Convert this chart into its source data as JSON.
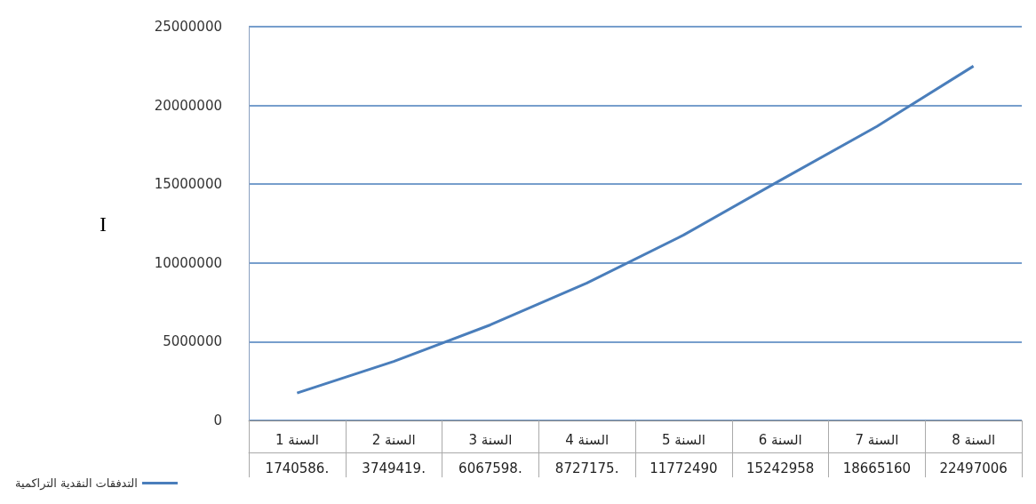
{
  "chart_data": {
    "type": "line",
    "ylabel": "I",
    "categories": [
      "السنة 1",
      "السنة 2",
      "السنة 3",
      "السنة 4",
      "السنة 5",
      "السنة 6",
      "السنة 7",
      "السنة 8"
    ],
    "series": [
      {
        "name": "التدفقات النقدية التراكمية",
        "color": "#4a7ebb",
        "values": [
          1740586,
          3749419,
          6067598,
          8727175,
          11772490,
          15242958,
          18665160,
          22497006
        ],
        "value_labels": [
          "1740586.",
          "3749419.",
          "6067598.",
          "8727175.",
          "11772490",
          "15242958",
          "18665160",
          "22497006"
        ]
      }
    ],
    "ylim": [
      0,
      25000000
    ],
    "yticks": [
      0,
      5000000,
      10000000,
      15000000,
      20000000,
      25000000
    ],
    "grid": "y",
    "legend": "bottom left",
    "marker": "none",
    "line_style": "solid"
  }
}
